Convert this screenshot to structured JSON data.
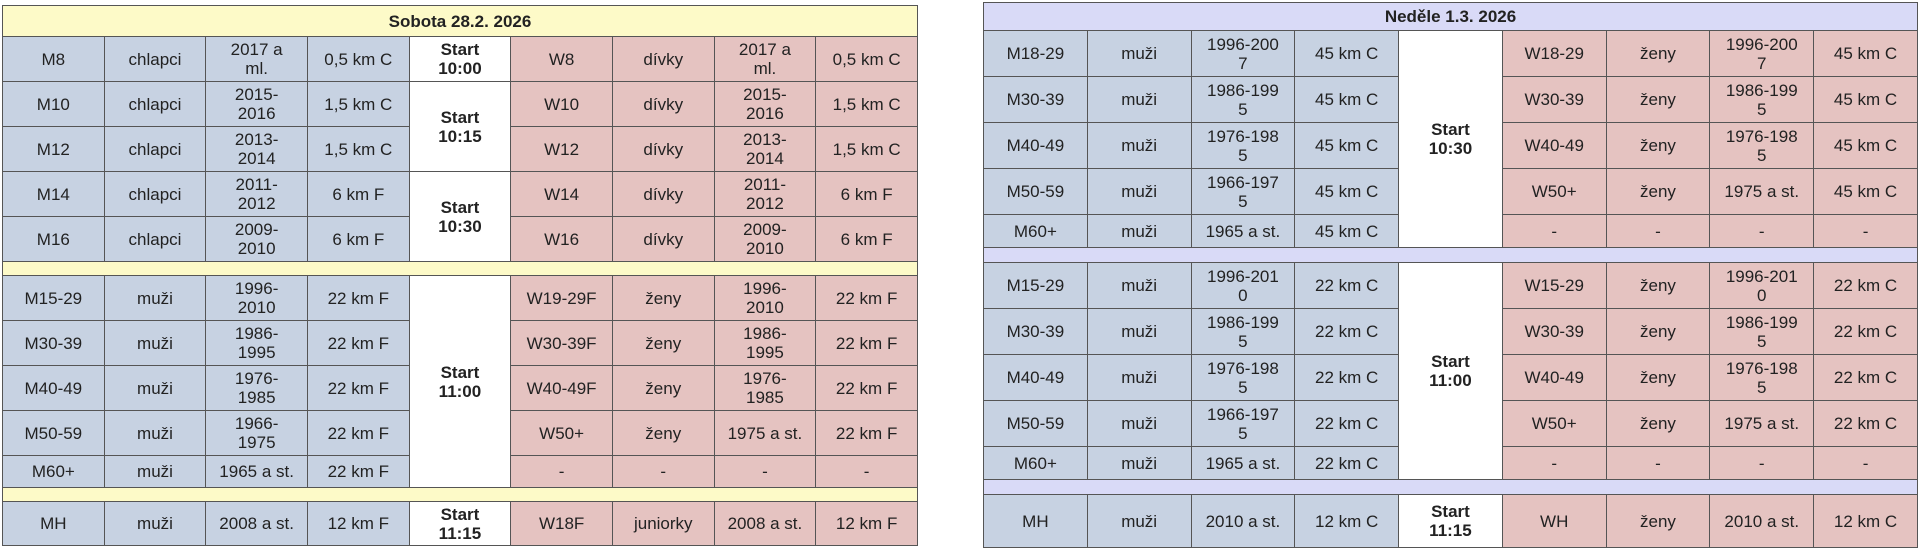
{
  "days": [
    {
      "title": "Sobota 28.2. 2026",
      "groups": [
        {
          "rows": [
            [
              "M8",
              "chlapci",
              "2017 a\nml.",
              "0,5 km C",
              "W8",
              "dívky",
              "2017 a\nml.",
              "0,5 km C"
            ],
            [
              "M10",
              "chlapci",
              "2015-\n2016",
              "1,5 km C",
              "W10",
              "dívky",
              "2015-\n2016",
              "1,5 km C"
            ],
            [
              "M12",
              "chlapci",
              "2013-\n2014",
              "1,5 km C",
              "W12",
              "dívky",
              "2013-\n2014",
              "1,5 km C"
            ],
            [
              "M14",
              "chlapci",
              "2011-\n2012",
              "6 km F",
              "W14",
              "dívky",
              "2011-\n2012",
              "6 km F"
            ],
            [
              "M16",
              "chlapci",
              "2009-\n2010",
              "6 km F",
              "W16",
              "dívky",
              "2009-\n2010",
              "6 km F"
            ]
          ],
          "starts": [
            {
              "label": "Start\n10:00",
              "span": 1
            },
            {
              "label": "Start\n10:15",
              "span": 2
            },
            {
              "label": "Start\n10:30",
              "span": 2
            }
          ]
        },
        {
          "rows": [
            [
              "M15-29",
              "muži",
              "1996-\n2010",
              "22 km F",
              "W19-29F",
              "ženy",
              "1996-\n2010",
              "22 km F"
            ],
            [
              "M30-39",
              "muži",
              "1986-\n1995",
              "22 km F",
              "W30-39F",
              "ženy",
              "1986-\n1995",
              "22 km F"
            ],
            [
              "M40-49",
              "muži",
              "1976-\n1985",
              "22 km F",
              "W40-49F",
              "ženy",
              "1976-\n1985",
              "22 km F"
            ],
            [
              "M50-59",
              "muži",
              "1966-\n1975",
              "22 km F",
              "W50+",
              "ženy",
              "1975 a st.",
              "22 km F"
            ],
            [
              "M60+",
              "muži",
              "1965 a st.",
              "22 km F",
              "-",
              "-",
              "-",
              "-"
            ]
          ],
          "starts": [
            {
              "label": "Start\n11:00",
              "span": 5
            }
          ]
        },
        {
          "rows": [
            [
              "MH",
              "muži",
              "2008 a st.",
              "12 km F",
              "W18F",
              "juniorky",
              "2008 a st.",
              "12 km F"
            ]
          ],
          "starts": [
            {
              "label": "Start\n11:15",
              "span": 1
            }
          ]
        }
      ]
    },
    {
      "title": "Neděle 1.3. 2026",
      "groups": [
        {
          "rows": [
            [
              "M18-29",
              "muži",
              "1996-200\n7",
              "45 km C",
              "W18-29",
              "ženy",
              "1996-200\n7",
              "45 km C"
            ],
            [
              "M30-39",
              "muži",
              "1986-199\n5",
              "45 km C",
              "W30-39",
              "ženy",
              "1986-199\n5",
              "45 km C"
            ],
            [
              "M40-49",
              "muži",
              "1976-198\n5",
              "45 km C",
              "W40-49",
              "ženy",
              "1976-198\n5",
              "45 km C"
            ],
            [
              "M50-59",
              "muži",
              "1966-197\n5",
              "45 km C",
              "W50+",
              "ženy",
              "1975 a st.",
              "45 km C"
            ],
            [
              "M60+",
              "muži",
              "1965 a st.",
              "45 km C",
              "-",
              "-",
              "-",
              "-"
            ]
          ],
          "starts": [
            {
              "label": "Start\n10:30",
              "span": 5
            }
          ]
        },
        {
          "rows": [
            [
              "M15-29",
              "muži",
              "1996-201\n0",
              "22 km C",
              "W15-29",
              "ženy",
              "1996-201\n0",
              "22 km C"
            ],
            [
              "M30-39",
              "muži",
              "1986-199\n5",
              "22 km C",
              "W30-39",
              "ženy",
              "1986-199\n5",
              "22 km C"
            ],
            [
              "M40-49",
              "muži",
              "1976-198\n5",
              "22 km C",
              "W40-49",
              "ženy",
              "1976-198\n5",
              "22 km C"
            ],
            [
              "M50-59",
              "muži",
              "1966-197\n5",
              "22 km C",
              "W50+",
              "ženy",
              "1975 a st.",
              "22 km C"
            ],
            [
              "M60+",
              "muži",
              "1965 a st.",
              "22 km C",
              "-",
              "-",
              "-",
              "-"
            ]
          ],
          "starts": [
            {
              "label": "Start\n11:00",
              "span": 5
            }
          ]
        },
        {
          "rows": [
            [
              "MH",
              "muži",
              "2010 a st.",
              "12 km C",
              "WH",
              "ženy",
              "2010 a st.",
              "12 km C"
            ]
          ],
          "starts": [
            {
              "label": "Start\n11:15",
              "span": 1
            }
          ]
        }
      ]
    }
  ]
}
